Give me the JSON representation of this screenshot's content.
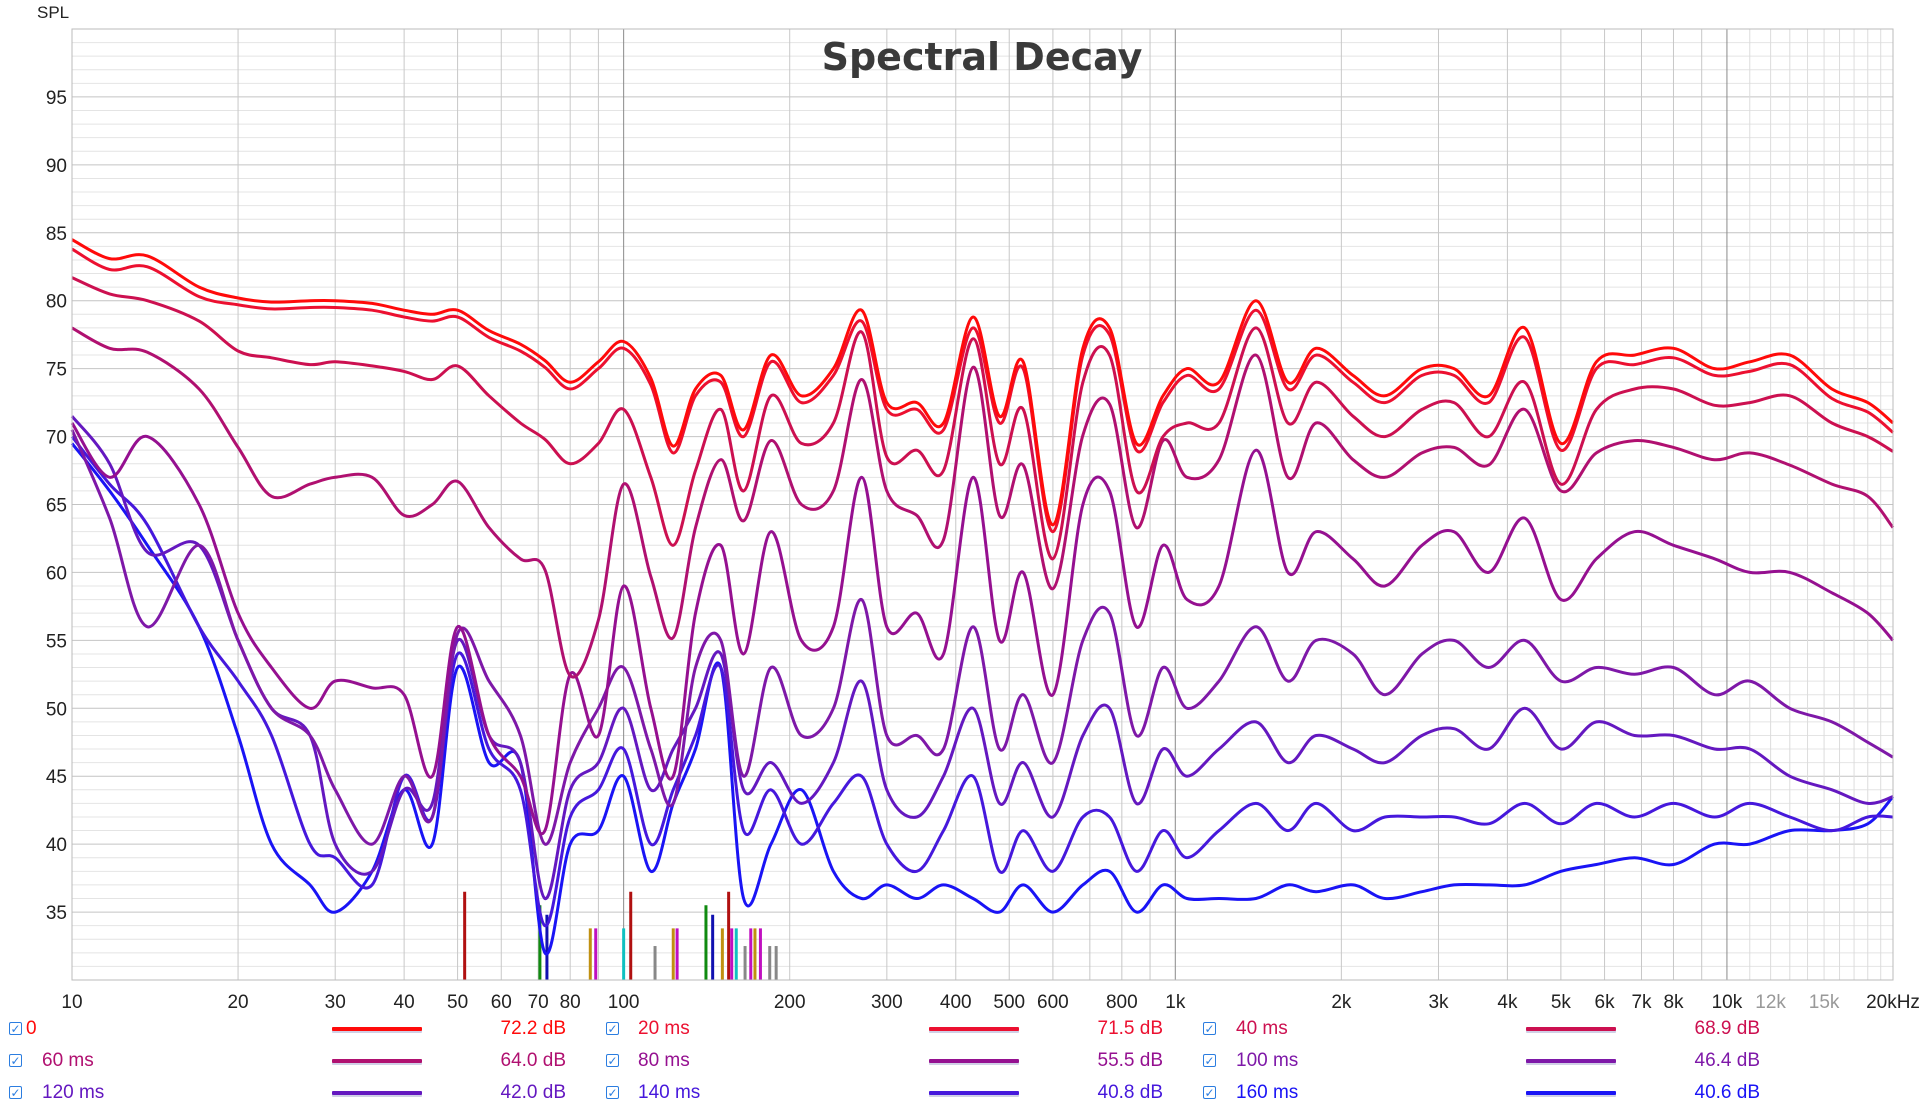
{
  "chart_data": {
    "type": "line",
    "title": "Spectral Decay",
    "ylabel": "SPL",
    "xlabel": "",
    "xscale": "log",
    "xlim": [
      10,
      20000
    ],
    "ylim": [
      30,
      100
    ],
    "grid": true,
    "legend_position": "bottom",
    "yticks": [
      35,
      40,
      45,
      50,
      55,
      60,
      65,
      70,
      75,
      80,
      85,
      90,
      95
    ],
    "xticks": [
      {
        "f": 10,
        "label": "10"
      },
      {
        "f": 20,
        "label": "20"
      },
      {
        "f": 30,
        "label": "30"
      },
      {
        "f": 40,
        "label": "40"
      },
      {
        "f": 50,
        "label": "50"
      },
      {
        "f": 60,
        "label": "60"
      },
      {
        "f": 70,
        "label": "70"
      },
      {
        "f": 80,
        "label": "80"
      },
      {
        "f": 100,
        "label": "100"
      },
      {
        "f": 200,
        "label": "200"
      },
      {
        "f": 300,
        "label": "300"
      },
      {
        "f": 400,
        "label": "400"
      },
      {
        "f": 500,
        "label": "500"
      },
      {
        "f": 600,
        "label": "600"
      },
      {
        "f": 800,
        "label": "800"
      },
      {
        "f": 1000,
        "label": "1k"
      },
      {
        "f": 2000,
        "label": "2k"
      },
      {
        "f": 3000,
        "label": "3k"
      },
      {
        "f": 4000,
        "label": "4k"
      },
      {
        "f": 5000,
        "label": "5k"
      },
      {
        "f": 6000,
        "label": "6k"
      },
      {
        "f": 7000,
        "label": "7k"
      },
      {
        "f": 8000,
        "label": "8k"
      },
      {
        "f": 10000,
        "label": "10k"
      },
      {
        "f": 12000,
        "label": "12k",
        "muted": true
      },
      {
        "f": 15000,
        "label": "15k",
        "muted": true
      },
      {
        "f": 20000,
        "label": "20kHz"
      }
    ],
    "x": [
      10,
      11.7,
      13.7,
      17,
      20,
      23,
      27,
      30,
      35,
      40,
      45,
      50,
      57,
      65,
      72,
      80,
      90,
      100,
      112,
      123,
      135,
      150,
      165,
      185,
      210,
      240,
      270,
      300,
      340,
      380,
      430,
      480,
      530,
      600,
      680,
      760,
      850,
      950,
      1050,
      1200,
      1400,
      1600,
      1800,
      2100,
      2400,
      2800,
      3200,
      3700,
      4300,
      5000,
      5800,
      6800,
      8000,
      9500,
      11000,
      13000,
      15500,
      18000,
      20000
    ],
    "series": [
      {
        "name": "0",
        "value_label": "72.2 dB",
        "color": "#ff0a0a",
        "values": [
          84.5,
          83.1,
          83.3,
          81,
          80.2,
          79.9,
          80,
          80,
          79.8,
          79.3,
          79,
          79.3,
          77.8,
          76.8,
          75.6,
          74,
          75.5,
          77,
          74.3,
          69.3,
          73.5,
          74.5,
          70.5,
          76,
          73,
          75,
          79.3,
          72.5,
          72.5,
          71,
          78.8,
          71.5,
          75.5,
          63.5,
          76.5,
          78,
          69.5,
          73,
          75,
          74,
          80,
          74,
          76.5,
          74.5,
          73,
          75,
          75,
          73,
          78,
          69.5,
          75.5,
          76,
          76.5,
          75,
          75.5,
          76,
          73.5,
          72.5,
          71
        ]
      },
      {
        "name": "20 ms",
        "value_label": "71.5 dB",
        "color": "#ec1030",
        "values": [
          83.8,
          82.3,
          82.5,
          80.3,
          79.7,
          79.4,
          79.5,
          79.5,
          79.3,
          78.8,
          78.5,
          78.8,
          77.3,
          76.3,
          75.1,
          73.5,
          75,
          76.5,
          73.8,
          68.8,
          73,
          74,
          70,
          75.5,
          72.5,
          74.5,
          78.5,
          72,
          72,
          70.5,
          78,
          71,
          75,
          63,
          76,
          77.5,
          69,
          72.5,
          74.5,
          73.5,
          79.3,
          73.5,
          76,
          74,
          72.5,
          74.5,
          74.5,
          72.5,
          77.3,
          69,
          75,
          75.3,
          75.8,
          74.5,
          74.8,
          75.3,
          72.8,
          71.8,
          70.3
        ]
      },
      {
        "name": "40 ms",
        "value_label": "68.9 dB",
        "color": "#cc1050",
        "values": [
          81.7,
          80.5,
          80,
          78.5,
          76.3,
          75.8,
          75.3,
          75.5,
          75.2,
          74.8,
          74.2,
          75.2,
          73,
          71,
          69.8,
          68,
          69.5,
          72,
          67,
          62,
          67.5,
          72,
          66,
          73,
          69.5,
          71,
          77.7,
          68.5,
          69,
          67.5,
          77.2,
          68,
          72,
          61,
          74,
          76,
          66,
          70,
          71,
          71,
          78,
          71,
          74,
          71.5,
          70,
          72,
          72.5,
          70,
          74,
          66.5,
          72,
          73.5,
          73.5,
          72.3,
          72.5,
          73,
          71,
          70,
          68.9
        ]
      },
      {
        "name": "60 ms",
        "value_label": "64.0 dB",
        "color": "#b01070",
        "values": [
          78,
          76.5,
          76.2,
          73.5,
          69.2,
          65.6,
          66.5,
          67,
          67,
          64.2,
          65,
          66.7,
          63.3,
          61,
          60.2,
          52.4,
          56.5,
          66.5,
          59.7,
          55.2,
          63.3,
          68.3,
          63.8,
          69.7,
          65,
          66,
          74.2,
          66,
          64.2,
          62.4,
          75.1,
          64.2,
          67.9,
          58.8,
          70.1,
          72.4,
          63.3,
          69.7,
          67,
          68.3,
          76,
          67,
          71,
          68.3,
          67,
          68.8,
          69.2,
          67.9,
          72,
          66,
          68.8,
          69.7,
          69.2,
          68.3,
          68.8,
          67.9,
          66.5,
          65.6,
          63.3
        ]
      },
      {
        "name": "80 ms",
        "value_label": "55.5 dB",
        "color": "#951090",
        "values": [
          71,
          67,
          70,
          65,
          57,
          53,
          50,
          52,
          51.5,
          51,
          45,
          56,
          48,
          45,
          41,
          52.5,
          48,
          59,
          50,
          45,
          57,
          62,
          54,
          63,
          55,
          56,
          67,
          56,
          57,
          54,
          67,
          55,
          60,
          51,
          65,
          66,
          56,
          62,
          58,
          59,
          69,
          60,
          63,
          61,
          59,
          62,
          63,
          60,
          64,
          58,
          61,
          63,
          62,
          61,
          60,
          60,
          58.5,
          57,
          55
        ]
      },
      {
        "name": "100 ms",
        "value_label": "46.4 dB",
        "color": "#7e18a8",
        "values": [
          70.5,
          64,
          56,
          62,
          55,
          50,
          48,
          44,
          40,
          45,
          42,
          55.5,
          52,
          48,
          40,
          46,
          50,
          53,
          47,
          43,
          53,
          55,
          45,
          53,
          48,
          50,
          58,
          48,
          48,
          47,
          56,
          47,
          51,
          46,
          55,
          57,
          48,
          53,
          50,
          52,
          56,
          52,
          55,
          54,
          51,
          54,
          55,
          53,
          55,
          52,
          53,
          52.5,
          53,
          51,
          52,
          50,
          49,
          47.5,
          46.4
        ]
      },
      {
        "name": "120 ms",
        "value_label": "42.0 dB",
        "color": "#6418c0",
        "values": [
          71.5,
          68,
          61.5,
          62,
          55,
          50,
          48,
          40,
          38,
          44,
          43,
          55,
          48,
          46,
          36,
          44,
          46,
          50,
          44,
          47,
          50,
          54,
          44,
          46,
          43,
          46,
          52,
          44,
          42,
          45,
          50,
          43,
          46,
          42,
          48,
          50,
          43,
          47,
          45,
          47,
          49,
          46,
          48,
          47,
          46,
          48,
          48.5,
          47,
          50,
          47,
          49,
          48,
          48,
          47,
          47,
          45,
          44,
          43,
          43.5
        ]
      },
      {
        "name": "140 ms",
        "value_label": "40.8 dB",
        "color": "#4618dc",
        "values": [
          70,
          66.5,
          63.5,
          56,
          52,
          48,
          40,
          39,
          37,
          45,
          42,
          54,
          47,
          44,
          34,
          42,
          44,
          47,
          40,
          44,
          48,
          53,
          41,
          44,
          40,
          43,
          45,
          40,
          38,
          41,
          45,
          38,
          41,
          38,
          42,
          42,
          38,
          41,
          39,
          41,
          43,
          41,
          43,
          41,
          42,
          42,
          42,
          41.5,
          43,
          41.5,
          43,
          42,
          43,
          42,
          43,
          42,
          41,
          42,
          42
        ]
      },
      {
        "name": "160 ms",
        "value_label": "40.6 dB",
        "color": "#1a14f5",
        "values": [
          69.5,
          66,
          62,
          56,
          48,
          40,
          37,
          35,
          38,
          44,
          40,
          53,
          46,
          46,
          32,
          40,
          41,
          45,
          38,
          43,
          47,
          53,
          36,
          40,
          44,
          38,
          36,
          37,
          36,
          37,
          36,
          35,
          37,
          35,
          37,
          38,
          35,
          37,
          36,
          36,
          36,
          37,
          36.5,
          37,
          36,
          36.5,
          37,
          37,
          37,
          38,
          38.5,
          39,
          38.5,
          40,
          40,
          41,
          41,
          41.5,
          43.5
        ]
      }
    ],
    "markers": [
      {
        "f": 51.5,
        "level": 36.5,
        "color": "#b01010"
      },
      {
        "f": 70.5,
        "level": 35.5,
        "color": "#108a10"
      },
      {
        "f": 72.6,
        "level": 34.8,
        "color": "#1010b0"
      },
      {
        "f": 87,
        "level": 33.8,
        "color": "#c09010"
      },
      {
        "f": 89,
        "level": 33.8,
        "color": "#c010c0"
      },
      {
        "f": 100,
        "level": 33.8,
        "color": "#10c0c0"
      },
      {
        "f": 103,
        "level": 36.5,
        "color": "#b01010"
      },
      {
        "f": 114,
        "level": 32.5,
        "color": "#888888"
      },
      {
        "f": 123,
        "level": 33.8,
        "color": "#c09010"
      },
      {
        "f": 125,
        "level": 33.8,
        "color": "#c010c0"
      },
      {
        "f": 141,
        "level": 35.5,
        "color": "#108a10"
      },
      {
        "f": 145,
        "level": 34.8,
        "color": "#1010b0"
      },
      {
        "f": 151,
        "level": 33.8,
        "color": "#c09010"
      },
      {
        "f": 155,
        "level": 36.5,
        "color": "#b01010"
      },
      {
        "f": 157,
        "level": 33.8,
        "color": "#c010c0"
      },
      {
        "f": 160,
        "level": 33.8,
        "color": "#10c0c0"
      },
      {
        "f": 166,
        "level": 32.5,
        "color": "#888888"
      },
      {
        "f": 170,
        "level": 33.8,
        "color": "#c010c0"
      },
      {
        "f": 173,
        "level": 33.8,
        "color": "#c09010"
      },
      {
        "f": 177,
        "level": 33.8,
        "color": "#c010c0"
      },
      {
        "f": 184,
        "level": 32.5,
        "color": "#888888"
      },
      {
        "f": 189,
        "level": 32.5,
        "color": "#888888"
      }
    ]
  }
}
